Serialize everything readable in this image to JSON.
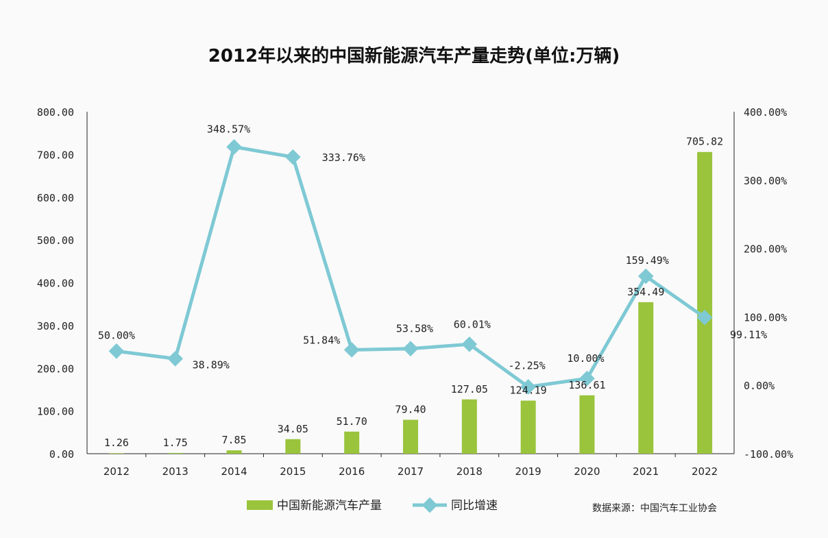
{
  "chart_data": {
    "type": "bar+line",
    "title": "2012年以来的中国新能源汽车产量走势(单位:万辆)",
    "categories": [
      "2012",
      "2013",
      "2014",
      "2015",
      "2016",
      "2017",
      "2018",
      "2019",
      "2020",
      "2021",
      "2022"
    ],
    "series": [
      {
        "name": "中国新能源汽车产量",
        "type": "bar",
        "axis": "left",
        "color": "#9ac43c",
        "values": [
          1.26,
          1.75,
          7.85,
          34.05,
          51.7,
          79.4,
          127.05,
          124.19,
          136.61,
          354.49,
          705.82
        ],
        "labels": [
          "1.26",
          "1.75",
          "7.85",
          "34.05",
          "51.70",
          "79.40",
          "127.05",
          "124.19",
          "136.61",
          "354.49",
          "705.82"
        ]
      },
      {
        "name": "同比增速",
        "type": "line",
        "axis": "right",
        "color": "#7ec9d4",
        "marker": "diamond",
        "values": [
          50.0,
          38.89,
          348.57,
          333.76,
          51.84,
          53.58,
          60.01,
          -2.25,
          10.0,
          159.49,
          99.11
        ],
        "labels": [
          "50.00%",
          "38.89%",
          "348.57%",
          "333.76%",
          "51.84%",
          "53.58%",
          "60.01%",
          "-2.25%",
          "10.00%",
          "159.49%",
          "99.11%"
        ]
      }
    ],
    "y_left": {
      "ylim": [
        0,
        800
      ],
      "ticks": [
        "0.00",
        "100.00",
        "200.00",
        "300.00",
        "400.00",
        "500.00",
        "600.00",
        "700.00",
        "800.00"
      ]
    },
    "y_right": {
      "ylim": [
        -100,
        400
      ],
      "ticks": [
        "-100.00%",
        "0.00%",
        "100.00%",
        "200.00%",
        "300.00%",
        "400.00%"
      ]
    },
    "grid": false,
    "legend_position": "bottom-center",
    "source": "数据来源：中国汽车工业协会"
  }
}
